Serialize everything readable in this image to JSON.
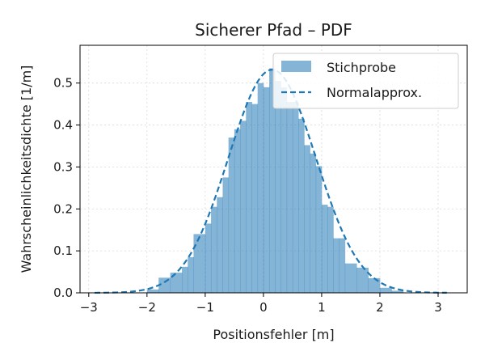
{
  "chart_data": {
    "type": "bar",
    "title": "Sicherer Pfad – PDF",
    "xlabel": "Positionsfehler [m]",
    "ylabel": "Wahrscheinlichkeitsdichte [1/m]",
    "xlim": [
      -3.15,
      3.5
    ],
    "ylim": [
      0,
      0.59
    ],
    "xticks": [
      -3,
      -2,
      -1,
      0,
      1,
      2,
      3
    ],
    "xtick_labels": [
      "−3",
      "−2",
      "−1",
      "0",
      "1",
      "2",
      "3"
    ],
    "yticks": [
      0.0,
      0.1,
      0.2,
      0.3,
      0.4,
      0.5
    ],
    "ytick_labels": [
      "0.0",
      "0.1",
      "0.2",
      "0.3",
      "0.4",
      "0.5"
    ],
    "grid": true,
    "legend_position": "top-right",
    "colors": {
      "histogram": "#1f77b4",
      "curve": "#1f77b4"
    },
    "histogram": {
      "name": "Stichprobe",
      "bins": [
        [
          -2.0,
          -1.8,
          0.008
        ],
        [
          -1.8,
          -1.6,
          0.036
        ],
        [
          -1.6,
          -1.4,
          0.048
        ],
        [
          -1.4,
          -1.3,
          0.062
        ],
        [
          -1.3,
          -1.2,
          0.085
        ],
        [
          -1.2,
          -1.0,
          0.14
        ],
        [
          -1.0,
          -0.9,
          0.165
        ],
        [
          -0.9,
          -0.8,
          0.205
        ],
        [
          -0.8,
          -0.7,
          0.228
        ],
        [
          -0.7,
          -0.6,
          0.275
        ],
        [
          -0.6,
          -0.5,
          0.37
        ],
        [
          -0.5,
          -0.4,
          0.39
        ],
        [
          -0.4,
          -0.3,
          0.41
        ],
        [
          -0.3,
          -0.2,
          0.455
        ],
        [
          -0.2,
          -0.1,
          0.45
        ],
        [
          -0.1,
          0.0,
          0.5
        ],
        [
          0.0,
          0.1,
          0.49
        ],
        [
          0.1,
          0.2,
          0.535
        ],
        [
          0.2,
          0.3,
          0.505
        ],
        [
          0.3,
          0.4,
          0.49
        ],
        [
          0.4,
          0.5,
          0.455
        ],
        [
          0.5,
          0.6,
          0.455
        ],
        [
          0.6,
          0.7,
          0.415
        ],
        [
          0.7,
          0.8,
          0.352
        ],
        [
          0.8,
          0.9,
          0.332
        ],
        [
          0.9,
          1.0,
          0.302
        ],
        [
          1.0,
          1.1,
          0.21
        ],
        [
          1.1,
          1.2,
          0.205
        ],
        [
          1.2,
          1.3,
          0.13
        ],
        [
          1.3,
          1.4,
          0.13
        ],
        [
          1.4,
          1.6,
          0.07
        ],
        [
          1.6,
          1.8,
          0.06
        ],
        [
          1.8,
          2.0,
          0.035
        ],
        [
          2.0,
          2.2,
          0.012
        ],
        [
          2.2,
          2.4,
          0.005
        ]
      ]
    },
    "curve": {
      "name": "Normalapprox.",
      "style": "dashed",
      "distribution": "normal",
      "mean": 0.15,
      "std": 0.75,
      "x_range": [
        -2.9,
        3.15
      ]
    }
  }
}
